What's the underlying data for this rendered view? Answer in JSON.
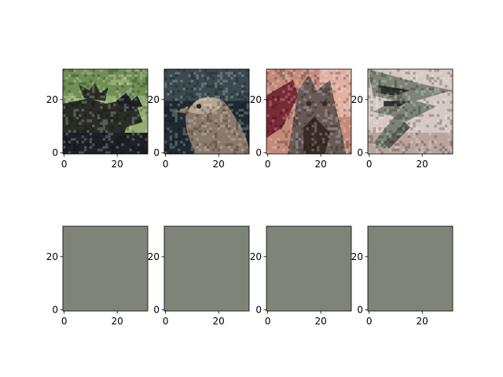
{
  "chart_data": {
    "type": "image-grid",
    "rows": 2,
    "cols": 4,
    "xlim": [
      -0.5,
      31.5
    ],
    "ylim": [
      31.5,
      -0.5
    ],
    "xticks": [
      0,
      20
    ],
    "yticks": [
      0,
      20
    ],
    "xtick_labels": [
      "0",
      "20"
    ],
    "ytick_labels": [
      "0",
      "20"
    ],
    "panels": [
      {
        "row": 0,
        "content": "moose",
        "kind": "photo",
        "colors": [
          "#3d4a2e",
          "#6f8f55",
          "#94ad73",
          "#2a2d25",
          "#1d2026"
        ]
      },
      {
        "row": 0,
        "content": "bird",
        "kind": "photo",
        "colors": [
          "#1f2a30",
          "#3a4a4f",
          "#b8a590",
          "#7a6a5a",
          "#8a7a6a"
        ]
      },
      {
        "row": 0,
        "content": "cat",
        "kind": "photo",
        "colors": [
          "#c48a7a",
          "#e0b0a0",
          "#7a2a35",
          "#6a5a55",
          "#3a2a25"
        ]
      },
      {
        "row": 0,
        "content": "airplane",
        "kind": "photo",
        "colors": [
          "#d6c8c2",
          "#b9a59c",
          "#5a5f56",
          "#7d8477",
          "#2f322d"
        ]
      },
      {
        "row": 1,
        "content": "flat-output",
        "kind": "solid",
        "colors": [
          "#7e8578"
        ]
      },
      {
        "row": 1,
        "content": "flat-output",
        "kind": "solid",
        "colors": [
          "#7e8578"
        ]
      },
      {
        "row": 1,
        "content": "flat-output",
        "kind": "solid",
        "colors": [
          "#7e8578"
        ]
      },
      {
        "row": 1,
        "content": "flat-output",
        "kind": "solid",
        "colors": [
          "#7e8578"
        ]
      }
    ]
  }
}
